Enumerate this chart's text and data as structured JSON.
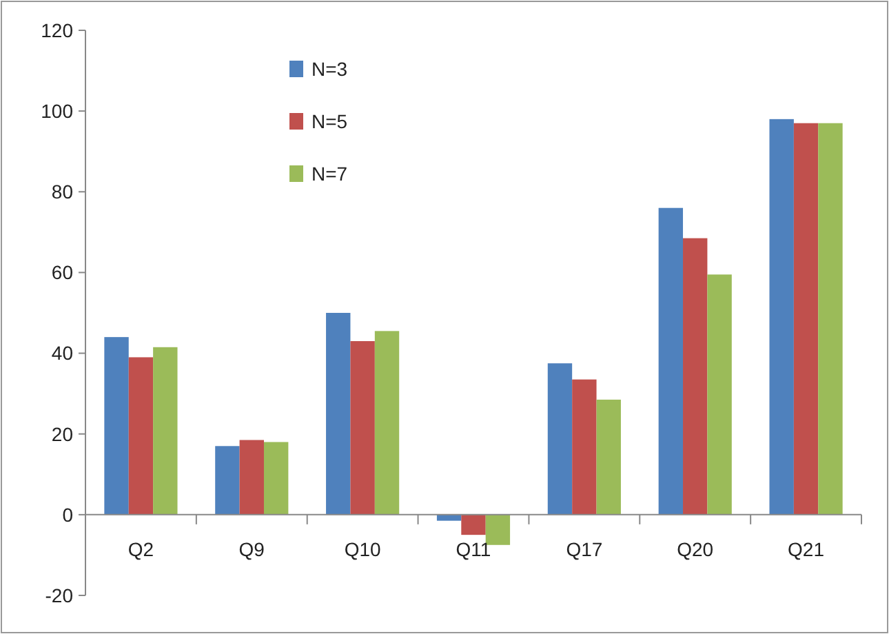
{
  "chart_data": {
    "type": "bar",
    "categories": [
      "Q2",
      "Q9",
      "Q10",
      "Q11",
      "Q17",
      "Q20",
      "Q21"
    ],
    "series": [
      {
        "name": "N=3",
        "color": "#4f81bd",
        "values": [
          44,
          17,
          50,
          -1.5,
          37.5,
          76,
          98
        ]
      },
      {
        "name": "N=5",
        "color": "#c0504d",
        "values": [
          39,
          18.5,
          43,
          -5,
          33.5,
          68.5,
          97
        ]
      },
      {
        "name": "N=7",
        "color": "#9bbb59",
        "values": [
          41.5,
          18,
          45.5,
          -7.5,
          28.5,
          59.5,
          97
        ]
      }
    ],
    "ylim": [
      -20,
      120
    ],
    "yticks": [
      -20,
      0,
      20,
      40,
      60,
      80,
      100,
      120
    ],
    "grid": false,
    "legend": "top left"
  }
}
